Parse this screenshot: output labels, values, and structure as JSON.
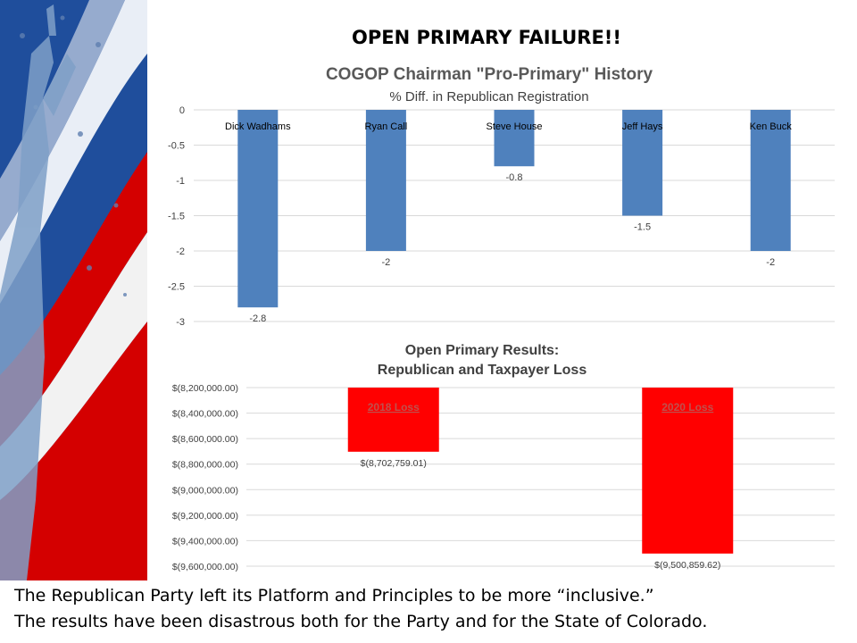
{
  "page": {
    "main_title": "OPEN PRIMARY FAILURE!!",
    "caption_line1": "The Republican Party left its Platform and Principles to be more “inclusive.”",
    "caption_line2": "The results have been disastrous both for the Party and for the State of Colorado."
  },
  "colors": {
    "chart1_bar": "#4f81bd",
    "chart2_bar": "#ff0000",
    "chart2_label": "#c0504d",
    "grid": "#d9d9d9",
    "flag_blue": "#1f4e9c",
    "flag_red": "#d40000"
  },
  "chart_data": [
    {
      "type": "bar",
      "title": "COGOP Chairman \"Pro-Primary\" History",
      "subtitle": "% Diff. in Republican Registration",
      "categories": [
        "Dick Wadhams",
        "Ryan Call",
        "Steve House",
        "Jeff Hays",
        "Ken Buck"
      ],
      "values": [
        -2.8,
        -2,
        -0.8,
        -1.5,
        -2
      ],
      "data_labels": [
        "-2.8",
        "-2",
        "-0.8",
        "-1.5",
        "-2"
      ],
      "ylim": [
        -3,
        0
      ],
      "yticks": [
        0,
        -0.5,
        -1,
        -1.5,
        -2,
        -2.5,
        -3
      ],
      "ytick_labels": [
        "0",
        "-0.5",
        "-1",
        "-1.5",
        "-2",
        "-2.5",
        "-3"
      ],
      "grid": true,
      "legend": "none"
    },
    {
      "type": "bar",
      "title": "Open Primary Results:",
      "subtitle": "Republican and Taxpayer Loss",
      "categories": [
        "2018 Loss",
        "2020 Loss"
      ],
      "values": [
        -8702759.01,
        -9500859.62
      ],
      "data_labels": [
        "$(8,702,759.01)",
        "$(9,500,859.62)"
      ],
      "ylim": [
        -9600000,
        -8200000
      ],
      "yticks": [
        -8200000,
        -8400000,
        -8600000,
        -8800000,
        -9000000,
        -9200000,
        -9400000,
        -9600000
      ],
      "ytick_labels": [
        "$(8,200,000.00)",
        "$(8,400,000.00)",
        "$(8,600,000.00)",
        "$(8,800,000.00)",
        "$(9,000,000.00)",
        "$(9,200,000.00)",
        "$(9,400,000.00)",
        "$(9,600,000.00)"
      ],
      "grid": true,
      "legend": "none"
    }
  ]
}
